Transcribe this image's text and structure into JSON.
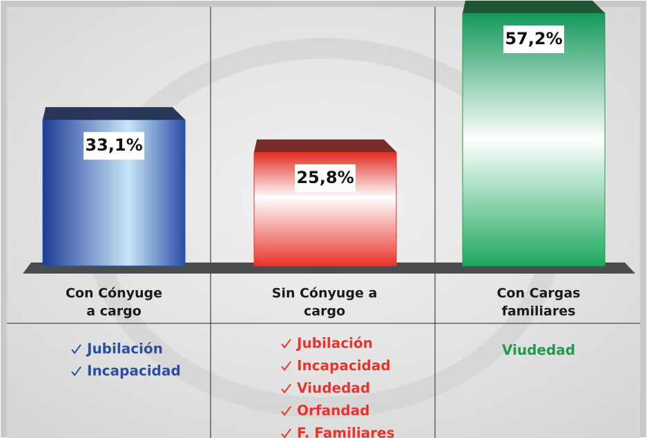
{
  "chart_data": {
    "type": "bar",
    "categories": [
      [
        "Con Cónyuge",
        "a cargo"
      ],
      [
        "Sin Cónyuge a",
        "cargo"
      ],
      [
        "Con Cargas",
        "familiares"
      ]
    ],
    "values": [
      33.1,
      25.8,
      57.2
    ],
    "value_labels": [
      "33,1%",
      "25,8%",
      "57,2%"
    ],
    "colors": [
      "#2a4fa0",
      "#e8342a",
      "#1e9a4c"
    ],
    "benefits": [
      [
        "Jubilación",
        "Incapacidad"
      ],
      [
        "Jubilación",
        "Incapacidad",
        "Viudedad",
        "Orfandad",
        "F. Familiares"
      ],
      [
        "Viudedad"
      ]
    ]
  }
}
